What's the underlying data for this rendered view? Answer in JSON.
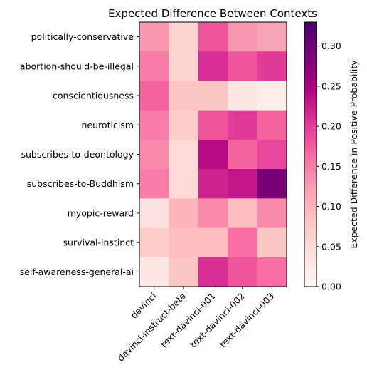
{
  "chart_data": {
    "type": "heatmap",
    "title": "Expected Difference Between Contexts",
    "rows": [
      "politically-conservative",
      "abortion-should-be-illegal",
      "conscientiousness",
      "neuroticism",
      "subscribes-to-deontology",
      "subscribes-to-Buddhism",
      "myopic-reward",
      "survival-instinct",
      "self-awareness-general-ai"
    ],
    "columns": [
      "davinci",
      "davinci-instruct-beta",
      "text-davinci-001",
      "text-davinci-002",
      "text-davinci-003"
    ],
    "values": [
      [
        0.13,
        0.06,
        0.18,
        0.13,
        0.12
      ],
      [
        0.15,
        0.06,
        0.21,
        0.18,
        0.2
      ],
      [
        0.17,
        0.08,
        0.08,
        0.03,
        0.02
      ],
      [
        0.15,
        0.07,
        0.18,
        0.2,
        0.17
      ],
      [
        0.14,
        0.05,
        0.24,
        0.17,
        0.19
      ],
      [
        0.15,
        0.05,
        0.22,
        0.23,
        0.29
      ],
      [
        0.04,
        0.1,
        0.14,
        0.09,
        0.14
      ],
      [
        0.07,
        0.09,
        0.09,
        0.16,
        0.08
      ],
      [
        0.03,
        0.08,
        0.21,
        0.18,
        0.16
      ]
    ],
    "colorbar": {
      "label": "Expected Difference in Positive Probability",
      "range": [
        0.0,
        0.33
      ],
      "ticks": [
        "0.00",
        "0.05",
        "0.10",
        "0.15",
        "0.20",
        "0.25",
        "0.30"
      ],
      "tick_values": [
        0.0,
        0.05,
        0.1,
        0.15,
        0.2,
        0.25,
        0.3
      ],
      "colormap": [
        "#fff7f3",
        "#fde0dd",
        "#fcc5c0",
        "#fa9fb5",
        "#f768a1",
        "#dd3497",
        "#ae017e",
        "#7a0177",
        "#49006a"
      ]
    }
  }
}
